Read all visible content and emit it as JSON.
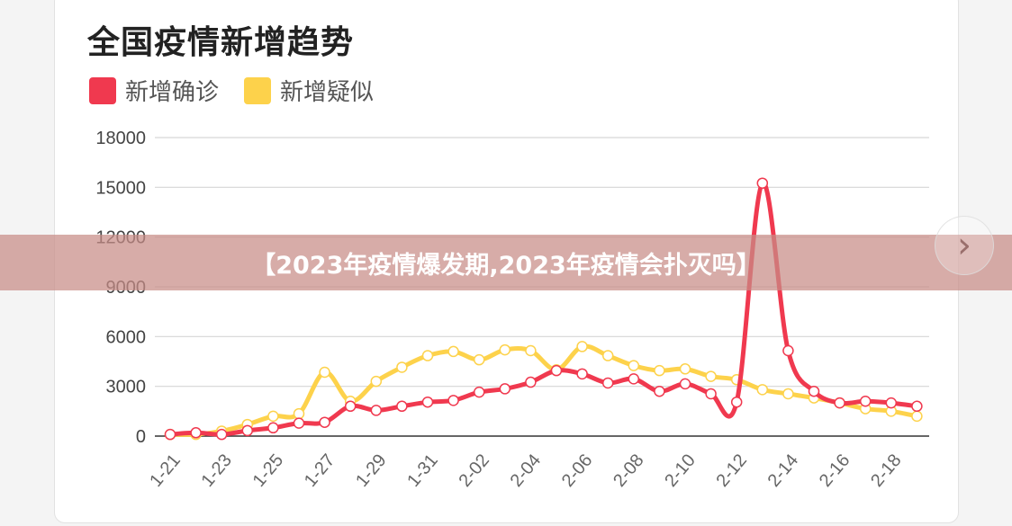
{
  "chart_data": {
    "type": "line",
    "title": "全国疫情新增趋势",
    "xlabel": "",
    "ylabel": "",
    "ylim": [
      0,
      18000
    ],
    "yticks": [
      0,
      3000,
      6000,
      9000,
      12000,
      15000,
      18000
    ],
    "grid": true,
    "legend_position": "top-left",
    "x": [
      "1-21",
      "1-22",
      "1-23",
      "1-24",
      "1-25",
      "1-26",
      "1-27",
      "1-28",
      "1-29",
      "1-30",
      "1-31",
      "2-01",
      "2-02",
      "2-03",
      "2-04",
      "2-05",
      "2-06",
      "2-07",
      "2-08",
      "2-09",
      "2-10",
      "2-11",
      "2-12",
      "2-13",
      "2-14",
      "2-15",
      "2-16",
      "2-17",
      "2-18",
      "2-19"
    ],
    "xtick_labels": [
      "1-21",
      "1-23",
      "1-25",
      "1-27",
      "1-29",
      "1-31",
      "2-02",
      "2-04",
      "2-06",
      "2-08",
      "2-10",
      "2-12",
      "2-14",
      "2-16",
      "2-18"
    ],
    "series": [
      {
        "name": "新增确诊",
        "color": "#f0394f",
        "values": [
          100,
          200,
          100,
          330,
          500,
          780,
          830,
          1800,
          1550,
          1800,
          2050,
          2150,
          2650,
          2850,
          3250,
          3950,
          3750,
          3200,
          3450,
          2700,
          3150,
          2550,
          2050,
          15250,
          5150,
          2700,
          2000,
          2100,
          2000,
          1800
        ]
      },
      {
        "name": "新增疑似",
        "color": "#fdd24b",
        "values": [
          100,
          100,
          300,
          700,
          1200,
          1350,
          3850,
          2100,
          3300,
          4150,
          4850,
          5100,
          4600,
          5200,
          5150,
          4000,
          5400,
          4850,
          4250,
          3950,
          4050,
          3600,
          3400,
          2800,
          2550,
          2300,
          2000,
          1650,
          1500,
          1200
        ]
      }
    ]
  },
  "banner": {
    "text": "【2023年疫情爆发期,2023年疫情会扑灭吗】"
  },
  "nav": {
    "next_icon": "chevron-right-icon",
    "next_glyph": "›"
  }
}
